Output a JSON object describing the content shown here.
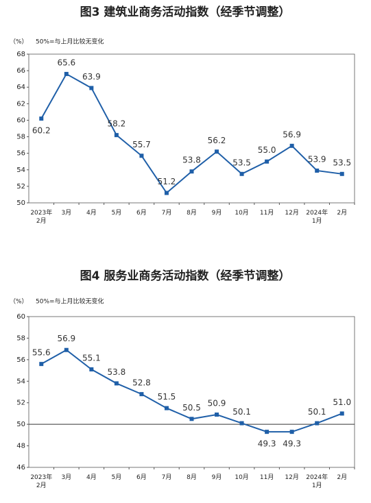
{
  "chart_data": [
    {
      "type": "line",
      "title": "图3  建筑业商务活动指数（经季节调整）",
      "unit_label": "（%）",
      "note": "50%=与上月比较无变化",
      "categories": [
        "2023年\n2月",
        "3月",
        "4月",
        "5月",
        "6月",
        "7月",
        "8月",
        "9月",
        "10月",
        "11月",
        "12月",
        "2024年\n1月",
        "2月"
      ],
      "values": [
        60.2,
        65.6,
        63.9,
        58.2,
        55.7,
        51.2,
        53.8,
        56.2,
        53.5,
        55.0,
        56.9,
        53.9,
        53.5
      ],
      "value_labels": [
        "60.2",
        "65.6",
        "63.9",
        "58.2",
        "55.7",
        "51.2",
        "53.8",
        "56.2",
        "53.5",
        "55.0",
        "56.9",
        "53.9",
        "53.5"
      ],
      "color": "#1f5fa8",
      "ylim": [
        50,
        68
      ],
      "yticks": [
        50,
        52,
        54,
        56,
        58,
        60,
        62,
        64,
        66,
        68
      ]
    },
    {
      "type": "line",
      "title": "图4  服务业商务活动指数（经季节调整）",
      "unit_label": "（%）",
      "note": "50%=与上月比较无变化",
      "categories": [
        "2023年\n2月",
        "3月",
        "4月",
        "5月",
        "6月",
        "7月",
        "8月",
        "9月",
        "10月",
        "11月",
        "12月",
        "2024年\n1月",
        "2月"
      ],
      "values": [
        55.6,
        56.9,
        55.1,
        53.8,
        52.8,
        51.5,
        50.5,
        50.9,
        50.1,
        49.3,
        49.3,
        50.1,
        51.0
      ],
      "value_labels": [
        "55.6",
        "56.9",
        "55.1",
        "53.8",
        "52.8",
        "51.5",
        "50.5",
        "50.9",
        "50.1",
        "49.3",
        "49.3",
        "50.1",
        "51.0"
      ],
      "color": "#1f5fa8",
      "ylim": [
        46,
        60
      ],
      "yticks": [
        46,
        48,
        50,
        52,
        54,
        56,
        58,
        60
      ],
      "baseline": 50
    }
  ]
}
